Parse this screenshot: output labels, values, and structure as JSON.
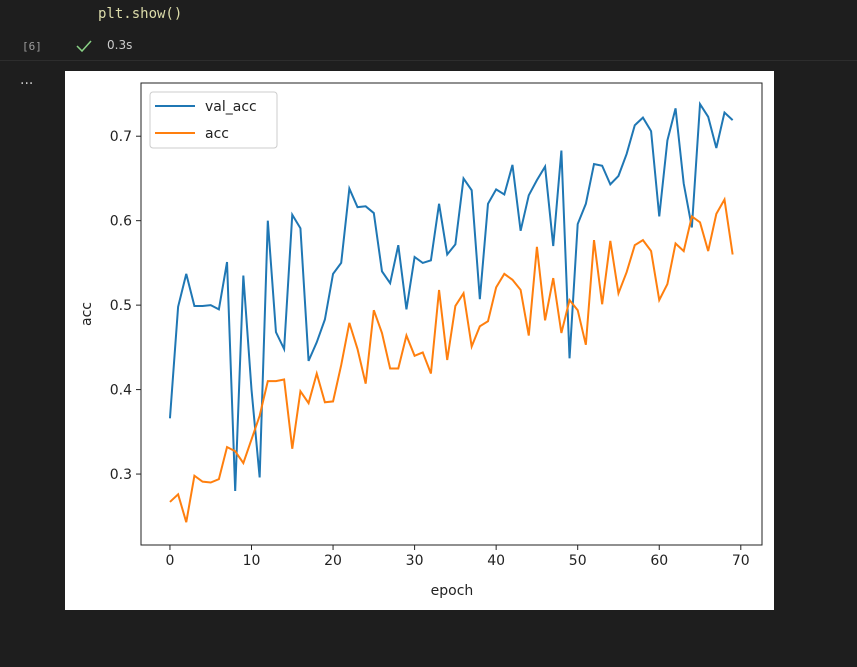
{
  "cell": {
    "code": "plt.show()",
    "execution_count": "[6]",
    "duration": "0.3s",
    "output_more": "..."
  },
  "chart_data": {
    "type": "line",
    "x": [
      0,
      1,
      2,
      3,
      4,
      5,
      6,
      7,
      8,
      9,
      10,
      11,
      12,
      13,
      14,
      15,
      16,
      17,
      18,
      19,
      20,
      21,
      22,
      23,
      24,
      25,
      26,
      27,
      28,
      29,
      30,
      31,
      32,
      33,
      34,
      35,
      36,
      37,
      38,
      39,
      40,
      41,
      42,
      43,
      44,
      45,
      46,
      47,
      48,
      49,
      50,
      51,
      52,
      53,
      54,
      55,
      56,
      57,
      58,
      59,
      60,
      61,
      62,
      63,
      64,
      65,
      66,
      67,
      68,
      69
    ],
    "x_label": "epoch",
    "y_label": "acc",
    "xlim": [
      -3.55,
      72.6
    ],
    "ylim": [
      0.216,
      0.763
    ],
    "xticks": [
      0,
      10,
      20,
      30,
      40,
      50,
      60,
      70
    ],
    "yticks": [
      0.3,
      0.4,
      0.5,
      0.6,
      0.7
    ],
    "legend": "upper left",
    "series": [
      {
        "name": "val_acc",
        "color": "#1f77b4",
        "values": [
          0.366,
          0.498,
          0.537,
          0.499,
          0.499,
          0.5,
          0.495,
          0.551,
          0.28,
          0.535,
          0.4,
          0.296,
          0.6,
          0.468,
          0.448,
          0.607,
          0.591,
          0.434,
          0.456,
          0.483,
          0.537,
          0.55,
          0.638,
          0.616,
          0.617,
          0.609,
          0.54,
          0.526,
          0.571,
          0.495,
          0.557,
          0.55,
          0.553,
          0.62,
          0.56,
          0.572,
          0.65,
          0.636,
          0.507,
          0.62,
          0.637,
          0.631,
          0.666,
          0.588,
          0.63,
          0.648,
          0.664,
          0.57,
          0.683,
          0.437,
          0.596,
          0.62,
          0.667,
          0.665,
          0.643,
          0.653,
          0.679,
          0.713,
          0.722,
          0.706,
          0.605,
          0.695,
          0.733,
          0.644,
          0.592,
          0.738,
          0.723,
          0.686,
          0.728,
          0.719
        ]
      },
      {
        "name": "acc",
        "color": "#ff7f0e",
        "values": [
          0.267,
          0.276,
          0.243,
          0.298,
          0.291,
          0.29,
          0.294,
          0.332,
          0.327,
          0.313,
          0.341,
          0.369,
          0.41,
          0.41,
          0.412,
          0.33,
          0.398,
          0.384,
          0.419,
          0.385,
          0.386,
          0.429,
          0.479,
          0.448,
          0.407,
          0.494,
          0.467,
          0.425,
          0.425,
          0.464,
          0.44,
          0.444,
          0.419,
          0.518,
          0.435,
          0.499,
          0.514,
          0.451,
          0.475,
          0.481,
          0.521,
          0.537,
          0.53,
          0.518,
          0.464,
          0.569,
          0.482,
          0.532,
          0.467,
          0.506,
          0.494,
          0.453,
          0.577,
          0.501,
          0.576,
          0.514,
          0.539,
          0.571,
          0.577,
          0.564,
          0.506,
          0.525,
          0.573,
          0.564,
          0.605,
          0.598,
          0.564,
          0.608,
          0.625,
          0.56
        ]
      }
    ]
  }
}
